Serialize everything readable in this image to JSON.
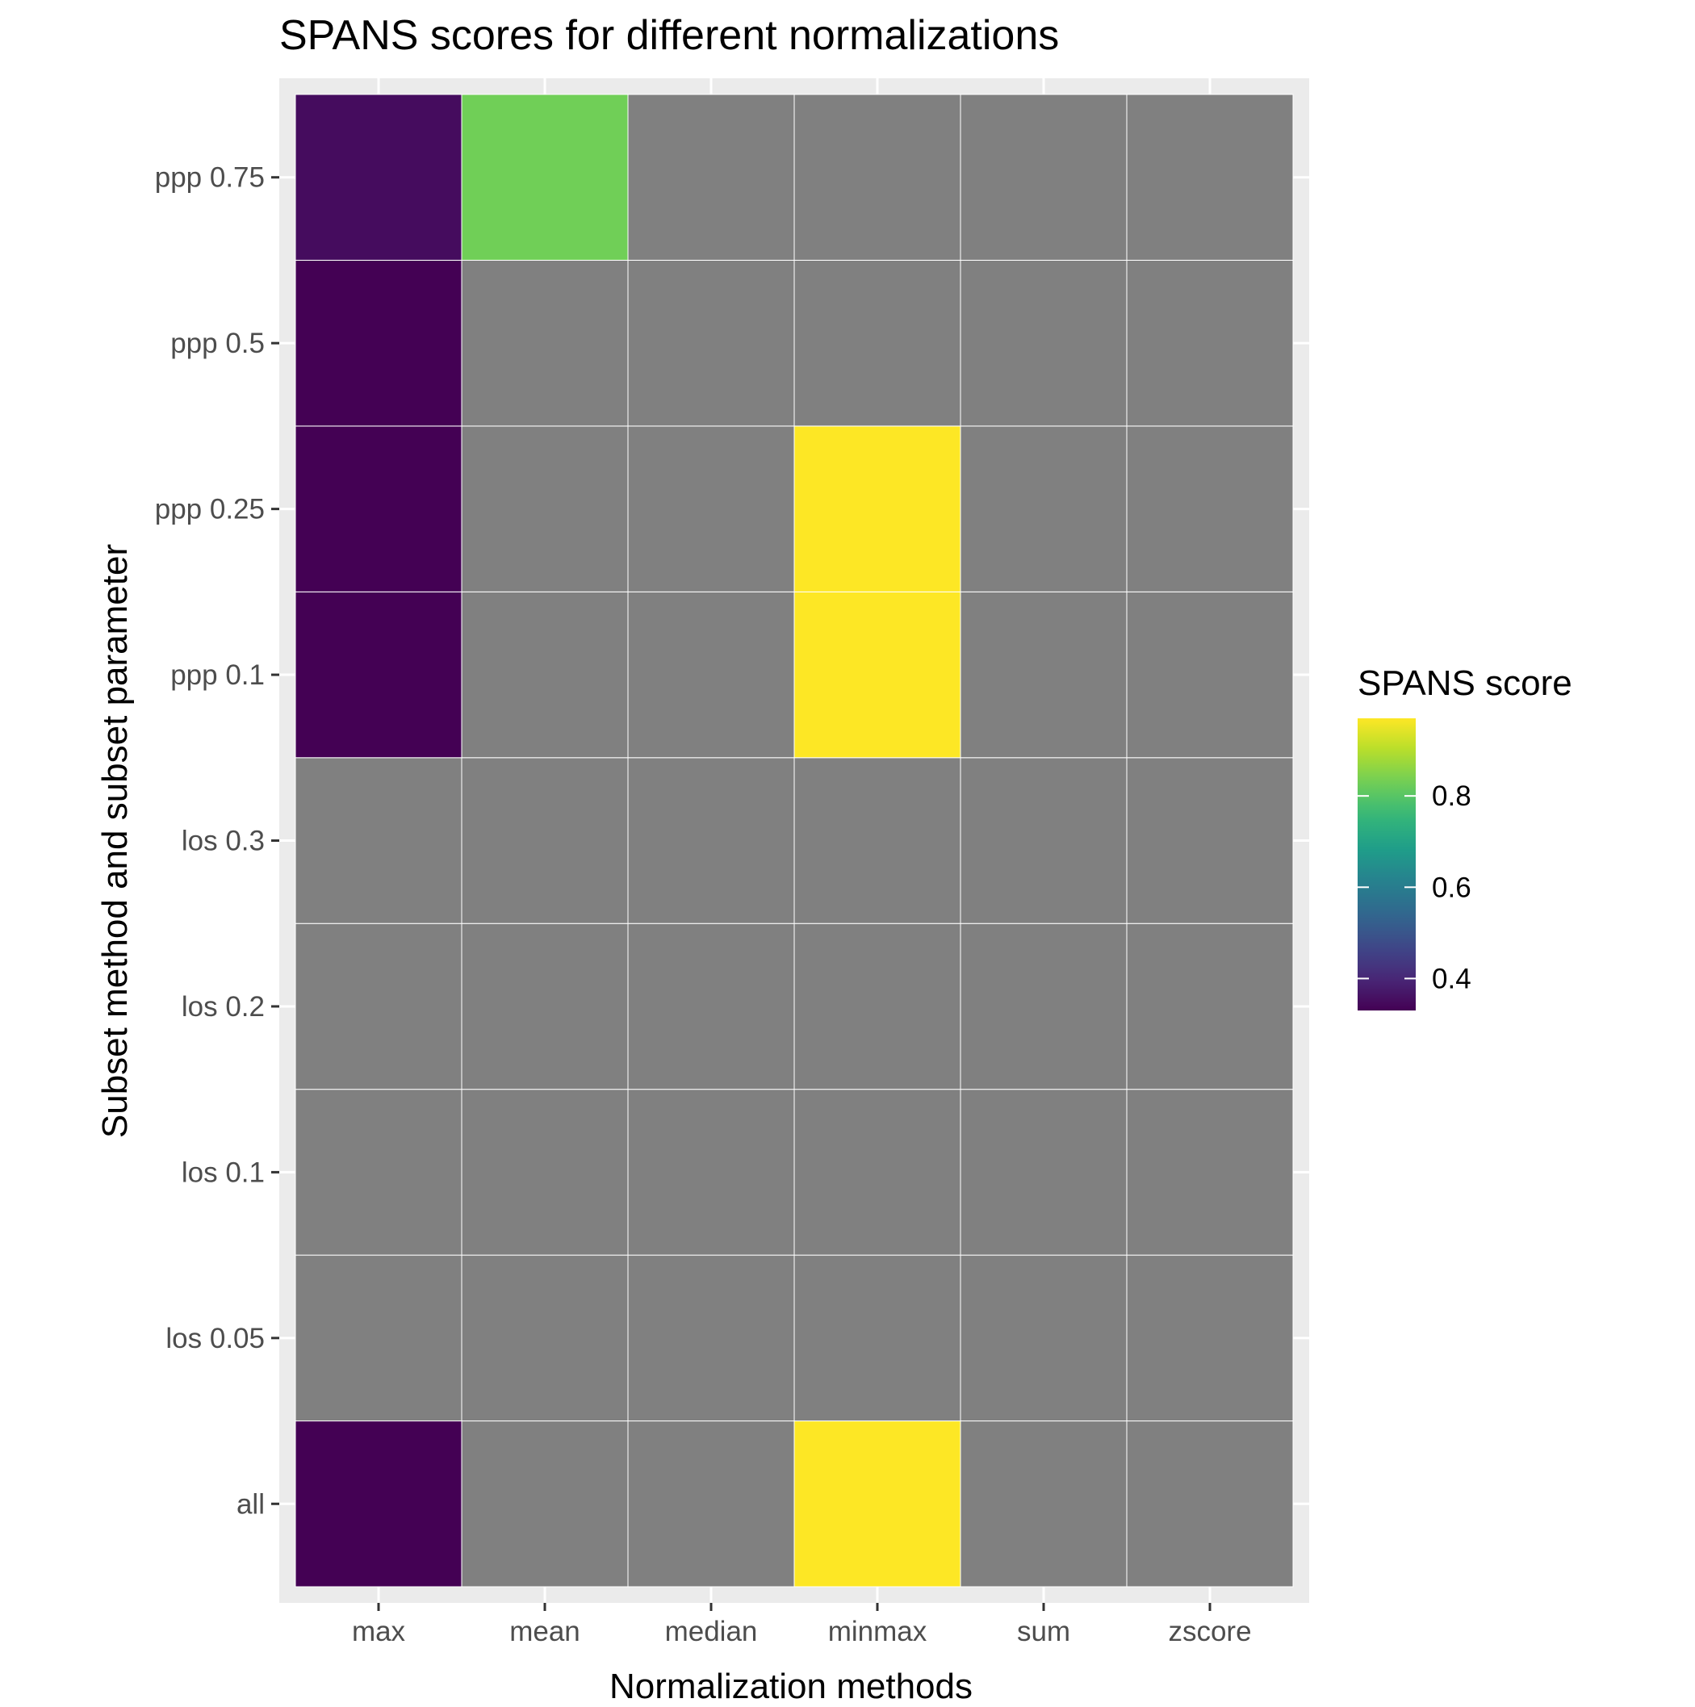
{
  "chart_data": {
    "type": "heatmap",
    "title": "SPANS scores for different normalizations",
    "xlabel": "Normalization methods",
    "ylabel": "Subset method and subset parameter",
    "x_categories": [
      "max",
      "mean",
      "median",
      "minmax",
      "sum",
      "zscore"
    ],
    "y_categories": [
      "all",
      "los 0.05",
      "los 0.1",
      "los 0.2",
      "los 0.3",
      "ppp 0.1",
      "ppp 0.25",
      "ppp 0.5",
      "ppp 0.75"
    ],
    "values": [
      [
        0.33,
        null,
        null,
        0.97,
        null,
        null
      ],
      [
        null,
        null,
        null,
        null,
        null,
        null
      ],
      [
        null,
        null,
        null,
        null,
        null,
        null
      ],
      [
        null,
        null,
        null,
        null,
        null,
        null
      ],
      [
        null,
        null,
        null,
        null,
        null,
        null
      ],
      [
        0.33,
        null,
        null,
        0.97,
        null,
        null
      ],
      [
        0.33,
        null,
        null,
        0.97,
        null,
        null
      ],
      [
        0.33,
        null,
        null,
        null,
        null,
        null
      ],
      [
        0.35,
        0.83,
        null,
        null,
        null,
        null
      ]
    ],
    "missing_color": "#808080",
    "panel_background": "#ebebeb",
    "grid": true,
    "colorscale": "viridis",
    "legend": {
      "title": "SPANS score",
      "position": "right",
      "range": [
        0.33,
        0.97
      ],
      "ticks": [
        "0.4",
        "0.6",
        "0.8"
      ],
      "tick_values": [
        0.4,
        0.6,
        0.8
      ]
    }
  }
}
